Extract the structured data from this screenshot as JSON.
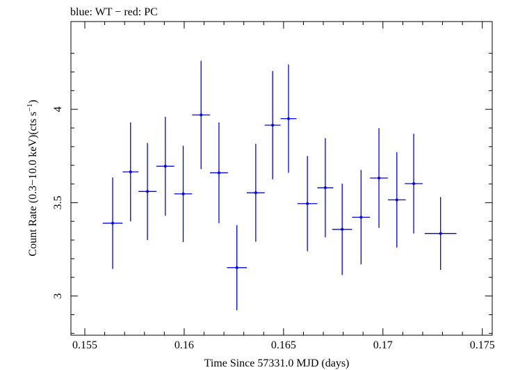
{
  "chart_data": {
    "type": "scatter",
    "title": "blue: WT − red: PC",
    "xlabel": "Time Since 57331.0 MJD (days)",
    "ylabel_main": "Count Rate (0.3−10.0 keV)(cts s",
    "ylabel_sup": "−1",
    "ylabel_close": ")",
    "xlim": [
      0.1543,
      0.1755
    ],
    "ylim": [
      2.79,
      4.47
    ],
    "xticks": [
      0.155,
      0.16,
      0.165,
      0.17,
      0.175
    ],
    "xtick_labels": [
      "0.155",
      "0.16",
      "0.165",
      "0.17",
      "0.175"
    ],
    "yticks": [
      3,
      3.5,
      4
    ],
    "ytick_labels": [
      "3",
      "3.5",
      "4"
    ],
    "series_color": "#0000ee",
    "series": [
      {
        "points": [
          {
            "x": 0.1564,
            "xerr": 0.0005,
            "y": 3.39,
            "yerr": 0.245
          },
          {
            "x": 0.1573,
            "xerr": 0.0004,
            "y": 3.665,
            "yerr": 0.265
          },
          {
            "x": 0.15815,
            "xerr": 0.00045,
            "y": 3.56,
            "yerr": 0.26
          },
          {
            "x": 0.15905,
            "xerr": 0.00045,
            "y": 3.695,
            "yerr": 0.265
          },
          {
            "x": 0.15995,
            "xerr": 0.00045,
            "y": 3.547,
            "yerr": 0.258
          },
          {
            "x": 0.16085,
            "xerr": 0.00045,
            "y": 3.97,
            "yerr": 0.29
          },
          {
            "x": 0.16175,
            "xerr": 0.00045,
            "y": 3.66,
            "yerr": 0.27
          },
          {
            "x": 0.16265,
            "xerr": 0.0005,
            "y": 3.152,
            "yerr": 0.228
          },
          {
            "x": 0.1636,
            "xerr": 0.00045,
            "y": 3.553,
            "yerr": 0.262
          },
          {
            "x": 0.16445,
            "xerr": 0.0004,
            "y": 3.915,
            "yerr": 0.29
          },
          {
            "x": 0.16525,
            "xerr": 0.0004,
            "y": 3.95,
            "yerr": 0.29
          },
          {
            "x": 0.1662,
            "xerr": 0.0005,
            "y": 3.495,
            "yerr": 0.255
          },
          {
            "x": 0.1671,
            "xerr": 0.0004,
            "y": 3.58,
            "yerr": 0.265
          },
          {
            "x": 0.16795,
            "xerr": 0.0005,
            "y": 3.357,
            "yerr": 0.245
          },
          {
            "x": 0.1689,
            "xerr": 0.00045,
            "y": 3.422,
            "yerr": 0.253
          },
          {
            "x": 0.1698,
            "xerr": 0.00045,
            "y": 3.632,
            "yerr": 0.267
          },
          {
            "x": 0.1707,
            "xerr": 0.00045,
            "y": 3.515,
            "yerr": 0.255
          },
          {
            "x": 0.17155,
            "xerr": 0.00045,
            "y": 3.602,
            "yerr": 0.267
          },
          {
            "x": 0.1729,
            "xerr": 0.0008,
            "y": 3.335,
            "yerr": 0.195
          }
        ]
      }
    ]
  }
}
